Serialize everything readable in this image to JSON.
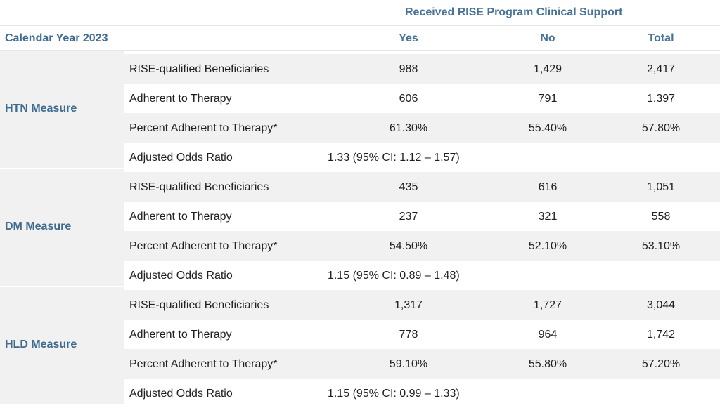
{
  "header": {
    "super_title": "Received RISE Program Clinical Support",
    "year_label": "Calendar Year 2023",
    "columns": [
      "Yes",
      "No",
      "Total"
    ]
  },
  "colors": {
    "header_text": "#4a7398",
    "shade": "#f1f1f1"
  },
  "groups": [
    {
      "name": "HTN Measure",
      "rows": [
        {
          "label": "RISE-qualified Beneficiaries",
          "yes": "988",
          "no": "1,429",
          "total": "2,417"
        },
        {
          "label": "Adherent to Therapy",
          "yes": "606",
          "no": "791",
          "total": "1,397"
        },
        {
          "label": "Percent Adherent to Therapy*",
          "yes": "61.30%",
          "no": "55.40%",
          "total": "57.80%"
        }
      ],
      "aor_label": "Adjusted Odds Ratio",
      "aor_value": "1.33 (95% CI: 1.12 – 1.57)"
    },
    {
      "name": "DM Measure",
      "rows": [
        {
          "label": "RISE-qualified Beneficiaries",
          "yes": "435",
          "no": "616",
          "total": "1,051"
        },
        {
          "label": "Adherent to Therapy",
          "yes": "237",
          "no": "321",
          "total": "558"
        },
        {
          "label": "Percent Adherent to Therapy*",
          "yes": "54.50%",
          "no": "52.10%",
          "total": "53.10%"
        }
      ],
      "aor_label": "Adjusted Odds Ratio",
      "aor_value": "1.15 (95% CI: 0.89 – 1.48)"
    },
    {
      "name": "HLD Measure",
      "rows": [
        {
          "label": "RISE-qualified Beneficiaries",
          "yes": "1,317",
          "no": "1,727",
          "total": "3,044"
        },
        {
          "label": "Adherent to Therapy",
          "yes": "778",
          "no": "964",
          "total": "1,742"
        },
        {
          "label": "Percent Adherent to Therapy*",
          "yes": "59.10%",
          "no": "55.80%",
          "total": "57.20%"
        }
      ],
      "aor_label": "Adjusted Odds Ratio",
      "aor_value": "1.15 (95% CI: 0.99 – 1.33)"
    }
  ]
}
